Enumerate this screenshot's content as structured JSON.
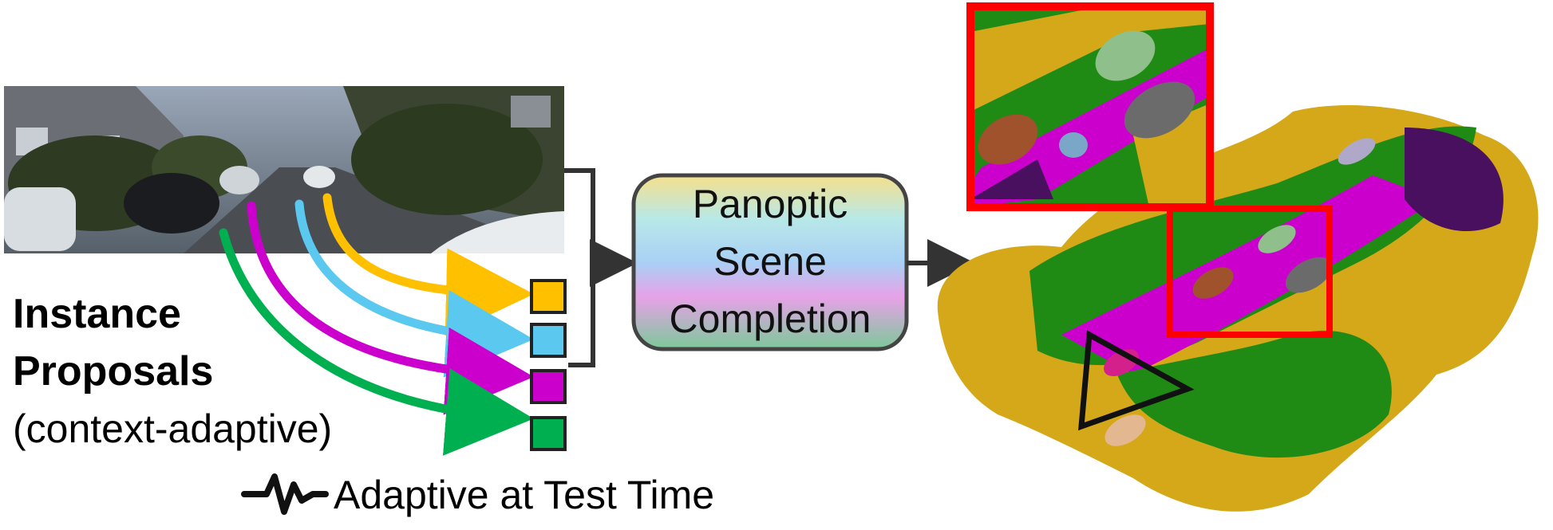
{
  "left_label": {
    "line1": "Instance",
    "line2": "Proposals",
    "line3": "(context-adaptive)"
  },
  "center_box": {
    "line1": "Panoptic",
    "line2": "Scene",
    "line3": "Completion"
  },
  "legend": {
    "icon": "pulse-waveform-icon",
    "text": "Adaptive at Test Time"
  },
  "proposal_colors": [
    "#ffc000",
    "#5bc8f0",
    "#cc00cc",
    "#00b050"
  ],
  "highlight_color": "#ff0000"
}
